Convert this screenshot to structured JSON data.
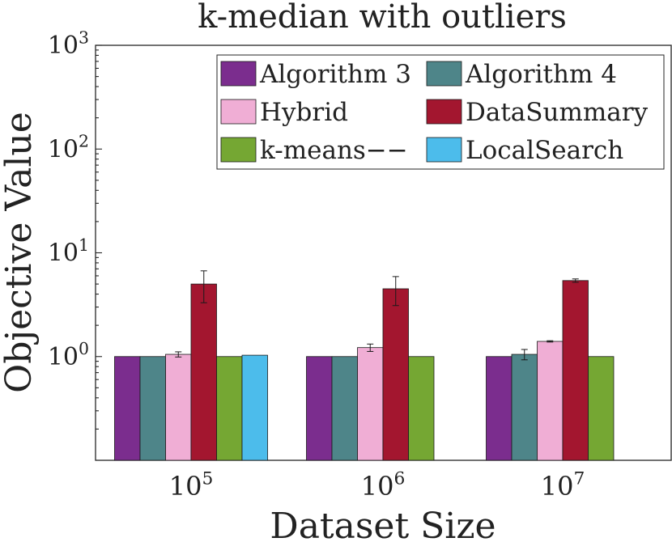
{
  "chart_data": {
    "type": "bar",
    "title": "k-median with outliers",
    "xlabel": "Dataset Size",
    "ylabel": "Objective Value",
    "yscale": "log",
    "ylim": [
      0.1,
      1000
    ],
    "grid": false,
    "legend_position": "top-right",
    "categories": [
      {
        "base": "10",
        "exp": "5"
      },
      {
        "base": "10",
        "exp": "6"
      },
      {
        "base": "10",
        "exp": "7"
      }
    ],
    "y_ticks": [
      {
        "base": "10",
        "exp": "0",
        "value": 1
      },
      {
        "base": "10",
        "exp": "1",
        "value": 10
      },
      {
        "base": "10",
        "exp": "2",
        "value": 100
      },
      {
        "base": "10",
        "exp": "3",
        "value": 1000
      }
    ],
    "series": [
      {
        "name": "Algorithm 3",
        "color": "#7b2d8e",
        "values": [
          1.0,
          1.0,
          1.0
        ],
        "err": [
          0,
          0,
          0
        ]
      },
      {
        "name": "Algorithm 4",
        "color": "#4e8589",
        "values": [
          1.0,
          1.0,
          1.05
        ],
        "err": [
          0,
          0,
          0.12
        ]
      },
      {
        "name": "Hybrid",
        "color": "#f0aed5",
        "values": [
          1.05,
          1.22,
          1.4
        ],
        "err": [
          0.06,
          0.1,
          0.02
        ]
      },
      {
        "name": "DataSummary",
        "color": "#a3162f",
        "values": [
          5.0,
          4.5,
          5.4
        ],
        "err": [
          1.7,
          1.4,
          0.2
        ]
      },
      {
        "name": "k-means−−",
        "color": "#75a733",
        "values": [
          1.0,
          1.0,
          1.0
        ],
        "err": [
          0,
          0,
          0
        ]
      },
      {
        "name": "LocalSearch",
        "color": "#4cbceb",
        "values": [
          1.03,
          null,
          null
        ],
        "err": [
          0,
          0,
          0
        ]
      }
    ]
  }
}
